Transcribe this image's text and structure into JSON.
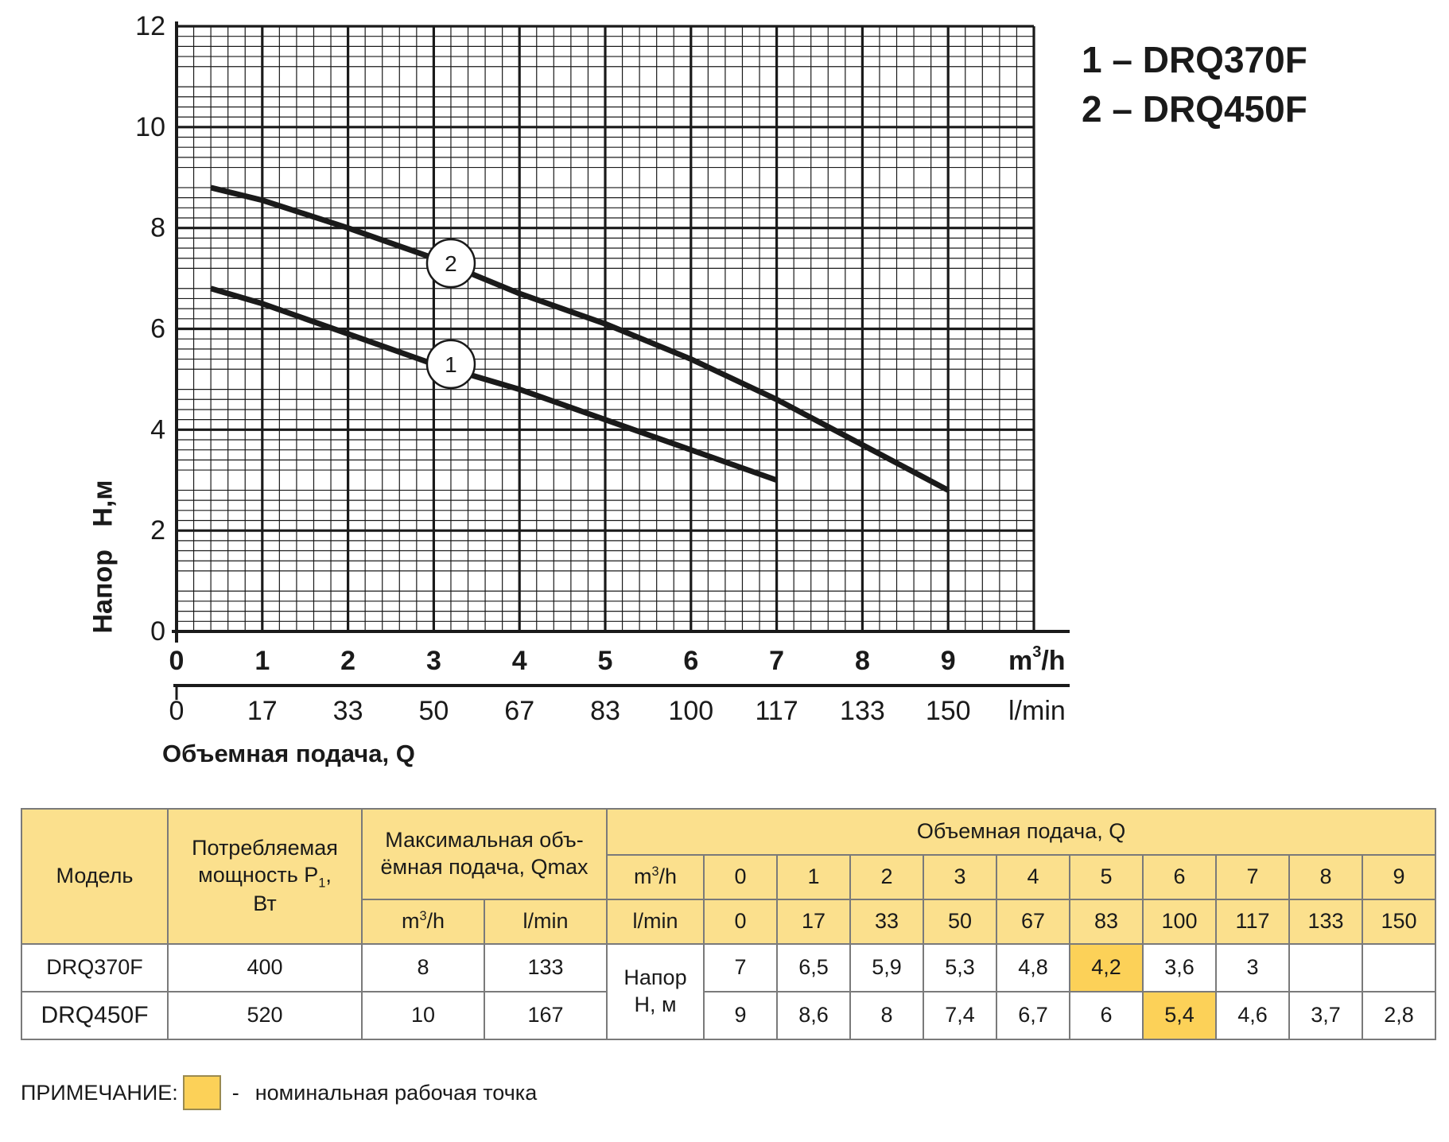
{
  "chart_data": {
    "type": "line",
    "x_primary": {
      "unit_label": "m",
      "unit_sup": "3",
      "unit_tail": "/h",
      "ticks": [
        "0",
        "1",
        "2",
        "3",
        "4",
        "5",
        "6",
        "7",
        "8",
        "9"
      ],
      "range": [
        0,
        10
      ]
    },
    "x_secondary": {
      "unit_label": "l/min",
      "ticks": [
        "0",
        "17",
        "33",
        "50",
        "67",
        "83",
        "100",
        "117",
        "133",
        "150"
      ]
    },
    "y": {
      "ticks": [
        "0",
        "2",
        "4",
        "6",
        "8",
        "10",
        "12"
      ],
      "range": [
        0,
        12
      ]
    },
    "xlabel": "Объемная подача, Q",
    "ylabel": "Напор   Н,м",
    "grid": true,
    "series": [
      {
        "marker": "1",
        "name": "DRQ370F",
        "x": [
          0.4,
          1,
          2,
          3,
          4,
          5,
          6,
          7
        ],
        "y": [
          6.8,
          6.5,
          5.9,
          5.3,
          4.8,
          4.2,
          3.6,
          3.0
        ],
        "marker_at": [
          3.2,
          5.3
        ]
      },
      {
        "marker": "2",
        "name": "DRQ450F",
        "x": [
          0.4,
          1,
          2,
          3,
          4,
          5,
          6,
          7,
          8,
          9
        ],
        "y": [
          8.8,
          8.55,
          8.0,
          7.4,
          6.7,
          6.1,
          5.4,
          4.6,
          3.7,
          2.8
        ],
        "marker_at": [
          3.2,
          7.3
        ]
      }
    ],
    "legend": [
      "1 – DRQ370F",
      "2 – DRQ450F"
    ]
  },
  "table": {
    "header": {
      "model": "Модель",
      "power_line1": "Потребляемая",
      "power_line2": "мощность P",
      "power_sub": "1",
      "power_line2_tail": ",",
      "power_unit": "Вт",
      "qmax_line1": "Максимальная объ-",
      "qmax_line2": "ёмная подача, Qmax",
      "flow": "Объемная подача, Q",
      "m3h_label": "m",
      "m3h_sup": "3",
      "m3h_tail": "/h",
      "lmin_label": "l/min",
      "head_line1": "Напор",
      "head_line2": "Н, м"
    },
    "flow_m3h": [
      "0",
      "1",
      "2",
      "3",
      "4",
      "5",
      "6",
      "7",
      "8",
      "9"
    ],
    "flow_lmin": [
      "0",
      "17",
      "33",
      "50",
      "67",
      "83",
      "100",
      "117",
      "133",
      "150"
    ],
    "rows": [
      {
        "model": "DRQ370F",
        "power": "400",
        "qmax_m3h": "8",
        "qmax_lmin": "133",
        "head": [
          "7",
          "6,5",
          "5,9",
          "5,3",
          "4,8",
          "4,2",
          "3,6",
          "3",
          "",
          ""
        ],
        "nominal_index": 5
      },
      {
        "model": "DRQ450F",
        "power": "520",
        "qmax_m3h": "10",
        "qmax_lmin": "167",
        "head": [
          "9",
          "8,6",
          "8",
          "7,4",
          "6,7",
          "6",
          "5,4",
          "4,6",
          "3,7",
          "2,8"
        ],
        "nominal_index": 6
      }
    ]
  },
  "note": {
    "label": "ПРИМЕЧАНИЕ:",
    "dash": "-",
    "text": "номинальная рабочая точка"
  },
  "colors": {
    "header_bg": "#fbe08d",
    "highlight": "#fcd158",
    "curve": "#1a1a1a",
    "grid": "#1a1a1a"
  }
}
